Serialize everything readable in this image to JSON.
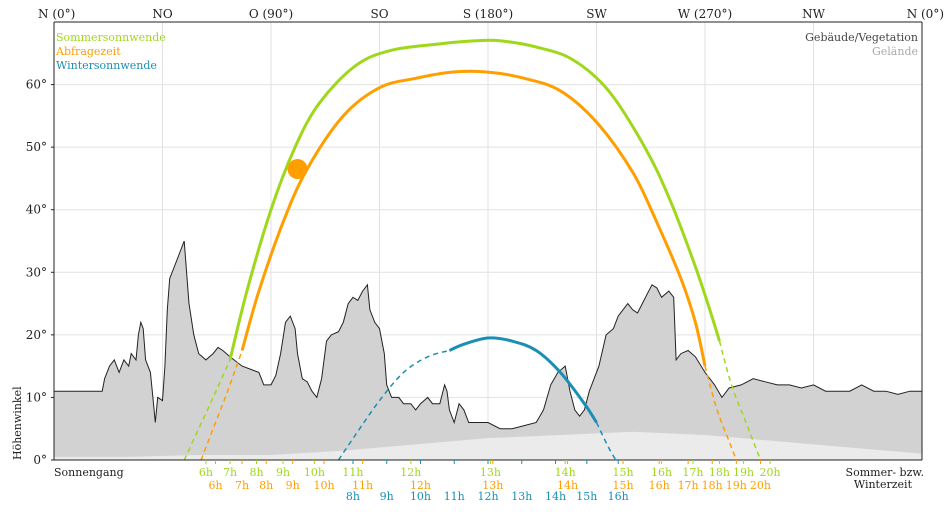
{
  "chart_data": {
    "type": "line",
    "ylabel": "Höhenwinkel",
    "ylim": [
      0,
      70
    ],
    "yticks": [
      0,
      10,
      20,
      30,
      40,
      50,
      60
    ],
    "xlim": [
      0,
      360
    ],
    "compass": [
      {
        "label": "N (0°)",
        "az": 0
      },
      {
        "label": "NO",
        "az": 45
      },
      {
        "label": "O (90°)",
        "az": 90
      },
      {
        "label": "SO",
        "az": 135
      },
      {
        "label": "S (180°)",
        "az": 180
      },
      {
        "label": "SW",
        "az": 225
      },
      {
        "label": "W (270°)",
        "az": 270
      },
      {
        "label": "NW",
        "az": 315
      },
      {
        "label": "N (0°)",
        "az": 360
      }
    ],
    "legend_left": [
      "Sommersonnwende",
      "Abfragezeit",
      "Wintersonnwende"
    ],
    "legend_right": [
      "Gebäude/Vegetation",
      "Gelände"
    ],
    "bottom_left": "Sonnengang",
    "bottom_right": [
      "Sommer- bzw.",
      "Winterzeit"
    ],
    "colors": {
      "summer": "#9fd81b",
      "query": "#ff9e00",
      "winter": "#1a8fb5",
      "buildings_fill": "#d2d2d2",
      "terrain_fill": "#ebebeb",
      "outline": "#222222"
    },
    "series": [
      {
        "name": "Sommersonnwende",
        "color": "#9fd81b",
        "visible": [
          [
            73,
            16
          ],
          [
            80,
            27
          ],
          [
            90,
            40
          ],
          [
            100,
            50
          ],
          [
            110,
            57
          ],
          [
            125,
            63
          ],
          [
            140,
            65.5
          ],
          [
            160,
            66.5
          ],
          [
            175,
            67
          ],
          [
            185,
            67
          ],
          [
            200,
            66
          ],
          [
            215,
            64
          ],
          [
            230,
            59
          ],
          [
            245,
            50
          ],
          [
            255,
            42
          ],
          [
            265,
            32
          ],
          [
            272,
            24
          ],
          [
            276,
            19
          ]
        ],
        "hidden": [
          [
            54,
            0
          ],
          [
            60,
            5
          ],
          [
            66,
            10
          ],
          [
            73,
            16
          ]
        ],
        "hidden_end": [
          [
            276,
            19
          ],
          [
            281,
            12
          ],
          [
            287,
            6
          ],
          [
            293,
            0
          ]
        ]
      },
      {
        "name": "Abfragezeit",
        "color": "#ff9e00",
        "visible": [
          [
            78,
            17.5
          ],
          [
            85,
            27
          ],
          [
            95,
            38
          ],
          [
            105,
            46.5
          ],
          [
            120,
            55
          ],
          [
            135,
            59.5
          ],
          [
            150,
            61
          ],
          [
            165,
            62
          ],
          [
            180,
            62
          ],
          [
            195,
            61
          ],
          [
            210,
            59
          ],
          [
            225,
            54
          ],
          [
            240,
            46
          ],
          [
            250,
            38
          ],
          [
            260,
            29
          ],
          [
            266,
            22
          ],
          [
            270,
            15
          ]
        ],
        "hidden": [
          [
            61,
            0
          ],
          [
            66,
            5
          ],
          [
            72,
            11
          ],
          [
            78,
            17.5
          ]
        ],
        "hidden_end": [
          [
            270,
            15
          ],
          [
            275,
            8
          ],
          [
            280,
            3
          ],
          [
            283,
            0
          ]
        ]
      },
      {
        "name": "Wintersonnwende",
        "color": "#1a8fb5",
        "visible": [
          [
            164,
            17.5
          ],
          [
            170,
            18.5
          ],
          [
            180,
            19.5
          ],
          [
            190,
            19
          ],
          [
            200,
            17.5
          ],
          [
            210,
            14
          ],
          [
            220,
            9
          ],
          [
            225,
            6
          ]
        ],
        "hidden": [
          [
            118,
            0
          ],
          [
            125,
            4
          ],
          [
            135,
            9.5
          ],
          [
            145,
            14
          ],
          [
            155,
            16.5
          ],
          [
            164,
            17.5
          ]
        ],
        "hidden_end": [
          [
            225,
            6
          ],
          [
            230,
            2
          ],
          [
            233,
            0
          ]
        ]
      }
    ],
    "query_marker": {
      "az": 101,
      "alt": 46.5,
      "label": "Abfragezeit"
    },
    "horizon_buildings": [
      [
        0,
        11
      ],
      [
        20,
        11
      ],
      [
        21,
        13
      ],
      [
        23,
        15
      ],
      [
        25,
        16
      ],
      [
        27,
        14
      ],
      [
        29,
        16
      ],
      [
        31,
        15
      ],
      [
        32,
        17
      ],
      [
        34,
        16
      ],
      [
        35,
        20
      ],
      [
        36,
        22
      ],
      [
        37,
        21
      ],
      [
        38,
        16
      ],
      [
        40,
        14
      ],
      [
        41,
        10
      ],
      [
        42,
        6
      ],
      [
        43,
        10
      ],
      [
        45,
        9.5
      ],
      [
        46,
        15
      ],
      [
        47,
        24
      ],
      [
        48,
        29
      ],
      [
        50,
        31
      ],
      [
        52,
        33
      ],
      [
        54,
        35
      ],
      [
        55,
        30
      ],
      [
        56,
        25
      ],
      [
        58,
        20
      ],
      [
        60,
        17
      ],
      [
        63,
        16
      ],
      [
        66,
        17
      ],
      [
        68,
        18
      ],
      [
        70,
        17.5
      ],
      [
        73,
        16.5
      ],
      [
        78,
        15
      ],
      [
        85,
        14
      ],
      [
        87,
        12
      ],
      [
        90,
        12
      ],
      [
        92,
        13.5
      ],
      [
        94,
        17
      ],
      [
        96,
        22
      ],
      [
        98,
        23
      ],
      [
        100,
        21
      ],
      [
        101,
        17
      ],
      [
        103,
        13
      ],
      [
        105,
        12.5
      ],
      [
        107,
        11
      ],
      [
        109,
        10
      ],
      [
        111,
        13
      ],
      [
        113,
        19
      ],
      [
        115,
        20
      ],
      [
        118,
        20.5
      ],
      [
        120,
        22
      ],
      [
        122,
        25
      ],
      [
        124,
        26
      ],
      [
        126,
        25.5
      ],
      [
        128,
        27
      ],
      [
        130,
        28
      ],
      [
        131,
        24
      ],
      [
        133,
        22
      ],
      [
        135,
        21
      ],
      [
        137,
        17
      ],
      [
        138,
        12
      ],
      [
        140,
        10
      ],
      [
        143,
        10
      ],
      [
        145,
        9
      ],
      [
        148,
        9
      ],
      [
        150,
        8
      ],
      [
        152,
        9
      ],
      [
        155,
        10
      ],
      [
        157,
        9
      ],
      [
        160,
        9
      ],
      [
        162,
        12
      ],
      [
        163,
        11
      ],
      [
        164,
        8
      ],
      [
        166,
        6
      ],
      [
        168,
        9
      ],
      [
        170,
        8
      ],
      [
        172,
        6
      ],
      [
        175,
        6
      ],
      [
        180,
        6
      ],
      [
        185,
        5
      ],
      [
        190,
        5
      ],
      [
        195,
        5.5
      ],
      [
        200,
        6
      ],
      [
        203,
        8
      ],
      [
        206,
        12
      ],
      [
        209,
        14
      ],
      [
        212,
        15
      ],
      [
        214,
        11
      ],
      [
        216,
        8
      ],
      [
        218,
        7
      ],
      [
        220,
        8
      ],
      [
        222,
        11
      ],
      [
        226,
        15
      ],
      [
        229,
        20
      ],
      [
        232,
        21
      ],
      [
        234,
        23
      ],
      [
        236,
        24
      ],
      [
        238,
        25
      ],
      [
        240,
        24
      ],
      [
        242,
        23.5
      ],
      [
        244,
        25
      ],
      [
        246,
        26.5
      ],
      [
        248,
        28
      ],
      [
        250,
        27.5
      ],
      [
        252,
        26
      ],
      [
        255,
        27
      ],
      [
        257,
        26
      ],
      [
        258,
        16
      ],
      [
        260,
        17
      ],
      [
        263,
        17.5
      ],
      [
        266,
        16.5
      ],
      [
        270,
        14
      ],
      [
        274,
        12
      ],
      [
        277,
        10
      ],
      [
        280,
        11.5
      ],
      [
        285,
        12
      ],
      [
        290,
        13
      ],
      [
        295,
        12.5
      ],
      [
        300,
        12
      ],
      [
        305,
        12
      ],
      [
        310,
        11.5
      ],
      [
        315,
        12
      ],
      [
        320,
        11
      ],
      [
        325,
        11
      ],
      [
        330,
        11
      ],
      [
        335,
        12
      ],
      [
        340,
        11
      ],
      [
        345,
        11
      ],
      [
        350,
        10.5
      ],
      [
        355,
        11
      ],
      [
        360,
        11
      ]
    ],
    "horizon_terrain": [
      [
        0,
        0.5
      ],
      [
        30,
        0.5
      ],
      [
        60,
        0.8
      ],
      [
        90,
        0.8
      ],
      [
        120,
        1.5
      ],
      [
        150,
        2.5
      ],
      [
        180,
        3.5
      ],
      [
        210,
        4
      ],
      [
        240,
        4.5
      ],
      [
        270,
        4
      ],
      [
        300,
        3
      ],
      [
        330,
        2
      ],
      [
        360,
        1
      ]
    ],
    "hour_ticks": {
      "summer": [
        {
          "label": "6h",
          "az": 63
        },
        {
          "label": "7h",
          "az": 73
        },
        {
          "label": "8h",
          "az": 84
        },
        {
          "label": "9h",
          "az": 95
        },
        {
          "label": "10h",
          "az": 108
        },
        {
          "label": "11h",
          "az": 124
        },
        {
          "label": "12h",
          "az": 148
        },
        {
          "label": "13h",
          "az": 181
        },
        {
          "label": "14h",
          "az": 212
        },
        {
          "label": "15h",
          "az": 236
        },
        {
          "label": "16h",
          "az": 252
        },
        {
          "label": "17h",
          "az": 265
        },
        {
          "label": "18h",
          "az": 276
        },
        {
          "label": "19h",
          "az": 286
        },
        {
          "label": "20h",
          "az": 297
        }
      ],
      "query": [
        {
          "label": "6h",
          "az": 67
        },
        {
          "label": "7h",
          "az": 78
        },
        {
          "label": "8h",
          "az": 88
        },
        {
          "label": "9h",
          "az": 99
        },
        {
          "label": "10h",
          "az": 112
        },
        {
          "label": "11h",
          "az": 128
        },
        {
          "label": "12h",
          "az": 152
        },
        {
          "label": "13h",
          "az": 182
        },
        {
          "label": "14h",
          "az": 213
        },
        {
          "label": "15h",
          "az": 236
        },
        {
          "label": "16h",
          "az": 251
        },
        {
          "label": "17h",
          "az": 263
        },
        {
          "label": "18h",
          "az": 273
        },
        {
          "label": "19h",
          "az": 283
        },
        {
          "label": "20h",
          "az": 293
        }
      ],
      "winter": [
        {
          "label": "8h",
          "az": 124
        },
        {
          "label": "9h",
          "az": 138
        },
        {
          "label": "10h",
          "az": 152
        },
        {
          "label": "11h",
          "az": 166
        },
        {
          "label": "12h",
          "az": 180
        },
        {
          "label": "13h",
          "az": 194
        },
        {
          "label": "14h",
          "az": 208
        },
        {
          "label": "15h",
          "az": 221
        },
        {
          "label": "16h",
          "az": 234
        }
      ]
    }
  }
}
